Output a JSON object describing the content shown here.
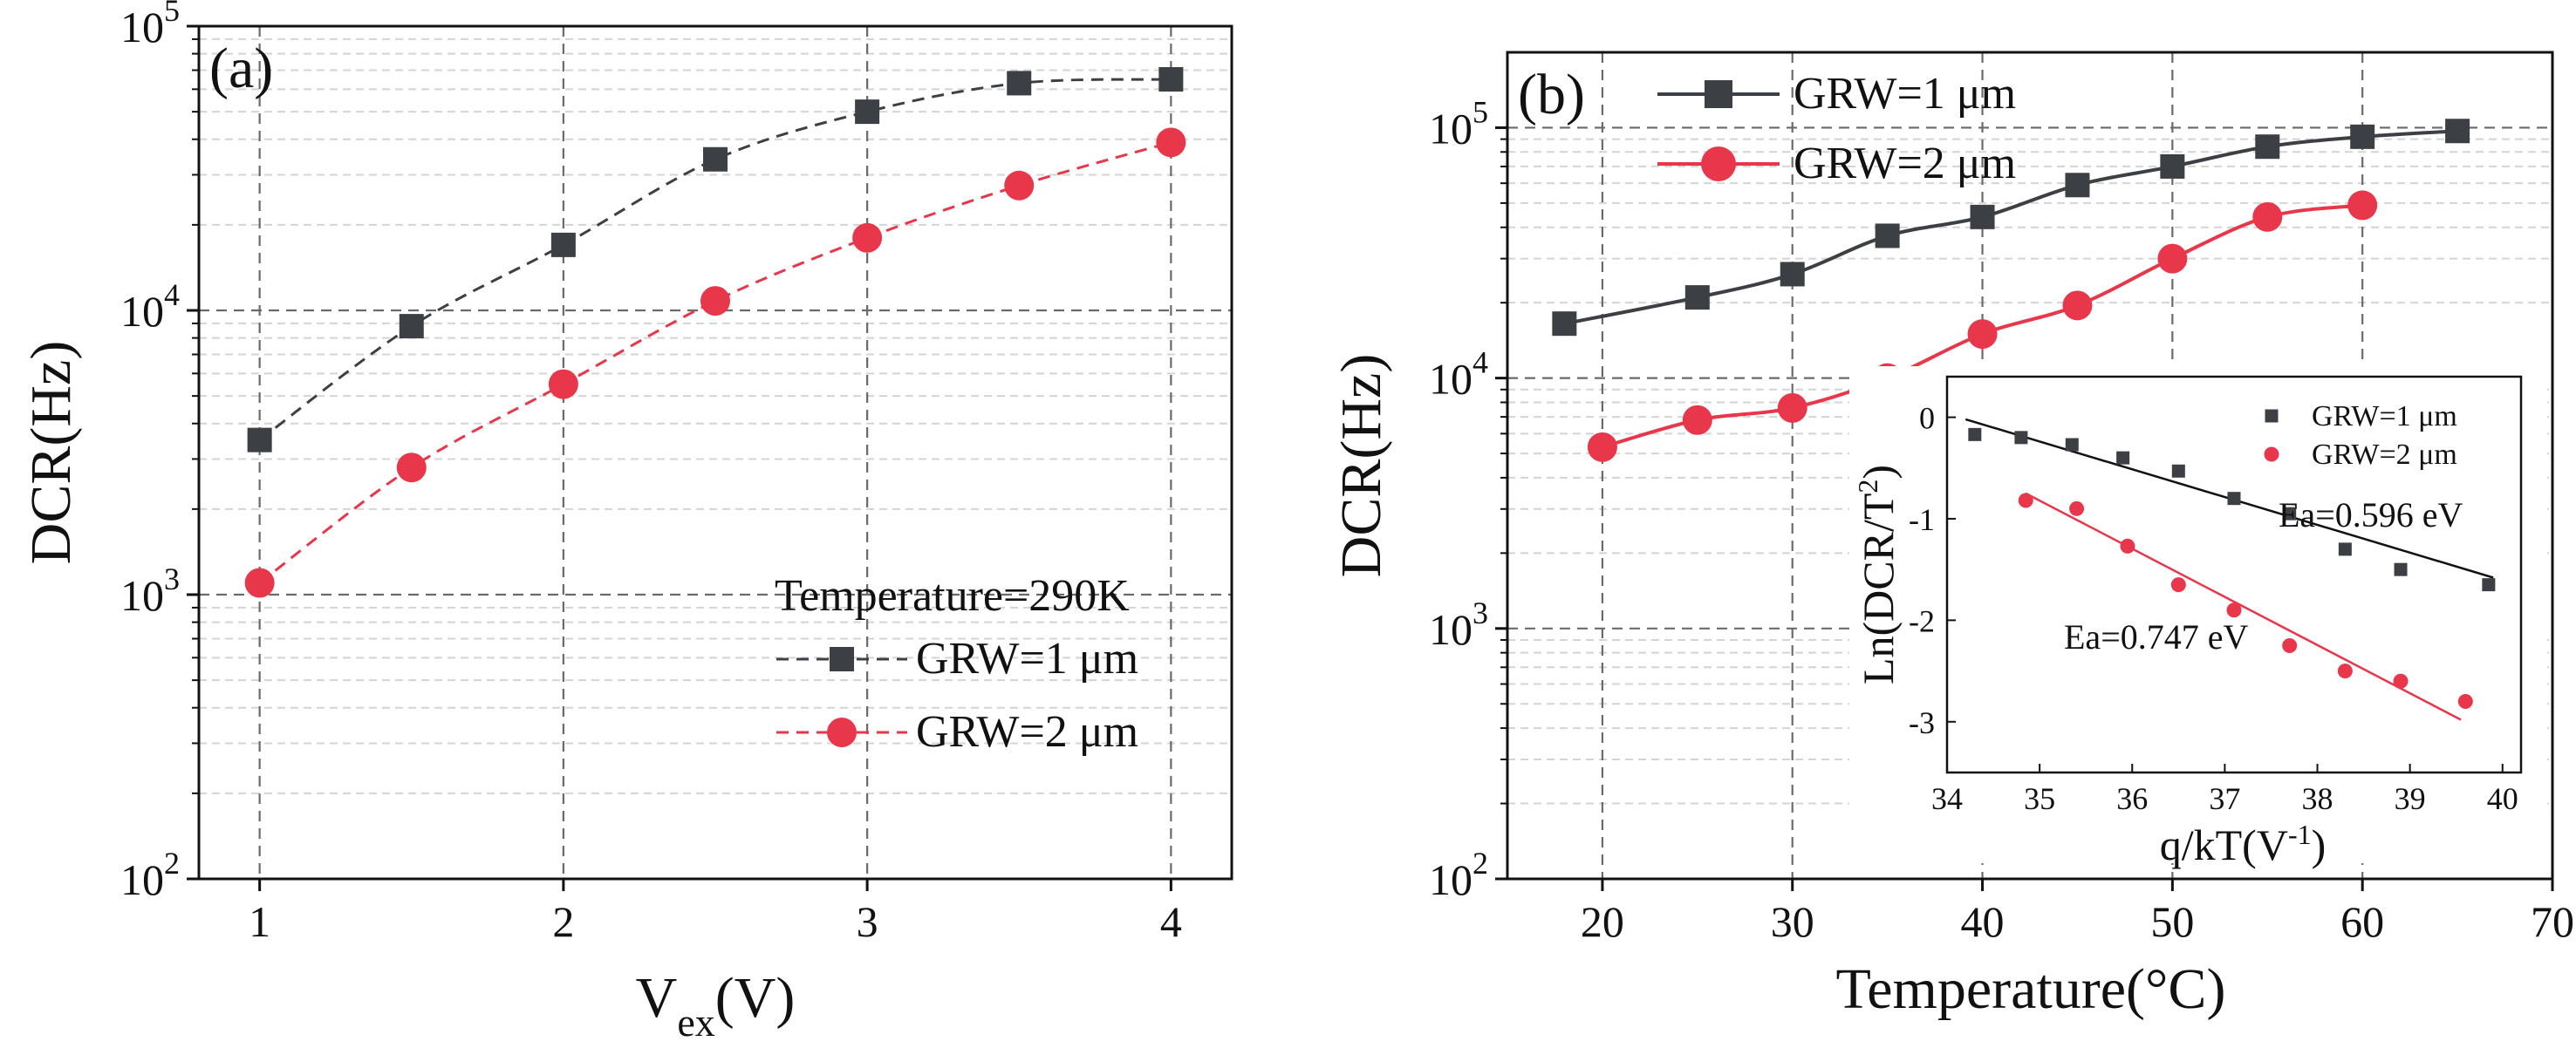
{
  "colors": {
    "black_series": "#3c3f44",
    "red_series": "#e8364a",
    "fit_black": "#111111",
    "fit_red": "#e8364a"
  },
  "chart_data": [
    {
      "id": "a",
      "type": "line",
      "panel_label": "(a)",
      "xlabel_main": "V",
      "xlabel_sub": "ex",
      "xlabel_tail": "(V)",
      "ylabel": "DCR(Hz)",
      "yscale": "log",
      "xlim": [
        0.8,
        4.2
      ],
      "ylim": [
        100,
        100000
      ],
      "xticks": [
        1,
        2,
        3,
        4
      ],
      "yticks_base": "10",
      "yticks_exp": [
        "2",
        "3",
        "4",
        "5"
      ],
      "annotation": "Temperature=290K",
      "line_style": "dashed",
      "series": [
        {
          "name": "GRW=1 μm",
          "marker": "square",
          "color": "#3c3f44",
          "x": [
            1,
            1.5,
            2,
            2.5,
            3,
            3.5,
            4
          ],
          "y": [
            3500,
            8800,
            17000,
            34000,
            50000,
            63000,
            65000
          ]
        },
        {
          "name": "GRW=2 μm",
          "marker": "circle",
          "color": "#e8364a",
          "x": [
            1,
            1.5,
            2,
            2.5,
            3,
            3.5,
            4
          ],
          "y": [
            1100,
            2800,
            5500,
            10800,
            18000,
            27500,
            39000
          ]
        }
      ]
    },
    {
      "id": "b",
      "type": "line",
      "panel_label": "(b)",
      "xlabel": "Temperature(°C)",
      "ylabel": "DCR(Hz)",
      "yscale": "log",
      "xlim": [
        15,
        70
      ],
      "ylim": [
        100,
        200000
      ],
      "xticks": [
        20,
        30,
        40,
        50,
        60,
        70
      ],
      "yticks_base": "10",
      "yticks_exp": [
        "2",
        "3",
        "4",
        "5"
      ],
      "line_style": "solid",
      "series": [
        {
          "name": "GRW=1 μm",
          "marker": "square",
          "color": "#3c3f44",
          "x": [
            18,
            25,
            30,
            35,
            40,
            45,
            50,
            55,
            60,
            65
          ],
          "y": [
            16500,
            21000,
            26000,
            37000,
            44000,
            59000,
            70000,
            84000,
            92000,
            97000
          ]
        },
        {
          "name": "GRW=2 μm",
          "marker": "circle",
          "color": "#e8364a",
          "x": [
            20,
            25,
            30,
            35,
            40,
            45,
            50,
            55,
            60
          ],
          "y": [
            5300,
            6800,
            7600,
            10000,
            15000,
            19500,
            30000,
            44000,
            49000
          ]
        }
      ]
    },
    {
      "id": "inset",
      "type": "scatter",
      "xlabel": "q/kT(V",
      "xlabel_sup": "-1",
      "xlabel_tail": ")",
      "ylabel": "Ln(DCR/T",
      "ylabel_sup": "2",
      "ylabel_tail": ")",
      "xlim": [
        34,
        40.2
      ],
      "ylim": [
        -3.5,
        0.4
      ],
      "xticks": [
        34,
        35,
        36,
        37,
        38,
        39,
        40
      ],
      "yticks": [
        0,
        -1,
        -2,
        -3
      ],
      "annotations": {
        "black": "Ea=0.596 eV",
        "red": "Ea=0.747 eV"
      },
      "series": [
        {
          "name": "GRW=1 μm",
          "marker": "square",
          "color": "#3c3f44",
          "x": [
            34.3,
            34.8,
            35.35,
            35.9,
            36.5,
            37.1,
            37.7,
            38.3,
            38.9,
            39.85
          ],
          "y": [
            -0.17,
            -0.2,
            -0.27,
            -0.4,
            -0.53,
            -0.8,
            -0.95,
            -1.3,
            -1.5,
            -1.65
          ],
          "fit": {
            "x": [
              34.2,
              39.9
            ],
            "y": [
              -0.02,
              -1.58
            ]
          }
        },
        {
          "name": "GRW=2 μm",
          "marker": "circle",
          "color": "#e8364a",
          "x": [
            34.85,
            35.4,
            35.95,
            36.5,
            37.1,
            37.7,
            38.3,
            38.9,
            39.6
          ],
          "y": [
            -0.82,
            -0.9,
            -1.27,
            -1.65,
            -1.9,
            -2.25,
            -2.5,
            -2.6,
            -2.8
          ],
          "fit": {
            "x": [
              34.85,
              39.55
            ],
            "y": [
              -0.75,
              -2.98
            ]
          }
        }
      ]
    }
  ]
}
